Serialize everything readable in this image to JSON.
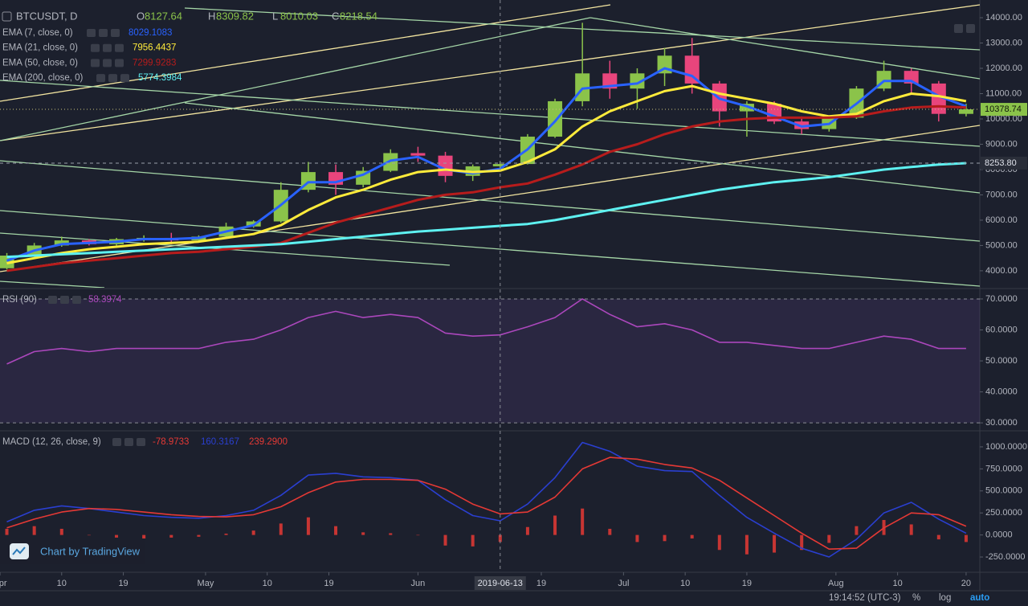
{
  "chart_data": [
    {
      "type": "candlestick",
      "title": "BTCUSDT, D",
      "ohlc_labels": [
        "O",
        "H",
        "L",
        "C"
      ],
      "crosshair": "2019-06-13",
      "x": [
        "2019-04-02",
        "2019-04-06",
        "2019-04-10",
        "2019-04-14",
        "2019-04-18",
        "2019-04-22",
        "2019-04-26",
        "2019-04-30",
        "2019-05-04",
        "2019-05-08",
        "2019-05-12",
        "2019-05-16",
        "2019-05-20",
        "2019-05-24",
        "2019-05-28",
        "2019-06-01",
        "2019-06-05",
        "2019-06-09",
        "2019-06-13",
        "2019-06-17",
        "2019-06-21",
        "2019-06-25",
        "2019-06-29",
        "2019-07-03",
        "2019-07-07",
        "2019-07-11",
        "2019-07-15",
        "2019-07-19",
        "2019-07-23",
        "2019-07-27",
        "2019-07-31",
        "2019-08-04",
        "2019-08-08",
        "2019-08-12",
        "2019-08-16",
        "2019-08-20"
      ],
      "open": [
        4100,
        4600,
        5000,
        5200,
        5050,
        5250,
        5300,
        5200,
        5350,
        5750,
        5950,
        7200,
        7900,
        7400,
        7950,
        8650,
        8550,
        7750,
        8127.64,
        8218.54,
        9300,
        10700,
        11800,
        11200,
        11800,
        12500,
        11400,
        10300,
        10600,
        9900,
        9600,
        10050,
        11200,
        11900,
        11400,
        10200
      ],
      "high": [
        4700,
        5100,
        5350,
        5250,
        5300,
        5400,
        5500,
        5400,
        5900,
        6000,
        7500,
        8300,
        8200,
        8100,
        8800,
        8900,
        8700,
        8200,
        8309.82,
        9400,
        10800,
        13800,
        12300,
        12000,
        12800,
        13200,
        11500,
        10700,
        10700,
        10100,
        10100,
        11300,
        12300,
        12000,
        11500,
        10600
      ],
      "low": [
        4050,
        4550,
        4950,
        5000,
        5000,
        5150,
        5050,
        5150,
        5300,
        5700,
        5900,
        7100,
        7000,
        7300,
        7900,
        8300,
        7500,
        7550,
        8010.03,
        8200,
        9250,
        10500,
        10800,
        10400,
        11300,
        11000,
        9700,
        9300,
        9800,
        9400,
        9500,
        10000,
        11100,
        11000,
        9900,
        10100
      ],
      "close": [
        4600,
        5000,
        5200,
        5050,
        5250,
        5300,
        5200,
        5350,
        5750,
        5950,
        7200,
        7900,
        7400,
        7950,
        8650,
        8550,
        7750,
        8127.64,
        8218.54,
        9300,
        10700,
        11800,
        11200,
        11800,
        12500,
        11400,
        10300,
        10600,
        9900,
        9600,
        10050,
        11200,
        11900,
        11400,
        10200,
        10378.74
      ],
      "up_color": "#8bc34a",
      "down_color": "#e8457c",
      "series": [
        {
          "name": "EMA (7, close, 0)",
          "color": "#2962ff",
          "values": [
            4400,
            4800,
            5050,
            5100,
            5150,
            5250,
            5250,
            5300,
            5550,
            5800,
            6600,
            7500,
            7500,
            7800,
            8350,
            8500,
            8000,
            7850,
            8029.1083,
            8800,
            9900,
            11200,
            11300,
            11400,
            12000,
            11700,
            10800,
            10500,
            10100,
            9700,
            9800,
            10600,
            11500,
            11500,
            10900,
            10500
          ]
        },
        {
          "name": "EMA (21, close, 0)",
          "color": "#ffeb3b",
          "values": [
            4300,
            4500,
            4700,
            4850,
            4950,
            5050,
            5100,
            5150,
            5300,
            5450,
            5800,
            6400,
            6900,
            7200,
            7600,
            7900,
            8000,
            7900,
            7956.4437,
            8300,
            8800,
            9700,
            10300,
            10700,
            11100,
            11300,
            11000,
            10800,
            10600,
            10300,
            10100,
            10200,
            10700,
            11000,
            10900,
            10700
          ]
        },
        {
          "name": "EMA (50, close, 0)",
          "color": "#b71c1c",
          "values": [
            4000,
            4150,
            4300,
            4400,
            4500,
            4600,
            4700,
            4750,
            4850,
            4950,
            5100,
            5500,
            5900,
            6200,
            6500,
            6800,
            7000,
            7100,
            7299.9283,
            7450,
            7800,
            8200,
            8700,
            9000,
            9400,
            9700,
            9900,
            10000,
            10050,
            10050,
            10050,
            10100,
            10300,
            10450,
            10500,
            10450
          ]
        },
        {
          "name": "EMA (200, close, 0)",
          "color": "#5ef1f1",
          "values": [
            4550,
            4600,
            4650,
            4700,
            4750,
            4800,
            4850,
            4900,
            4950,
            5000,
            5050,
            5150,
            5250,
            5350,
            5450,
            5550,
            5620,
            5700,
            5774.3984,
            5850,
            6000,
            6200,
            6400,
            6600,
            6800,
            7000,
            7200,
            7350,
            7500,
            7600,
            7700,
            7850,
            8000,
            8100,
            8200,
            8253.8
          ],
          "value_labels": [
            null,
            null,
            null,
            null,
            null,
            null,
            null,
            null,
            null,
            null,
            null,
            null,
            null,
            null,
            null,
            null,
            null,
            null,
            null,
            null,
            null,
            null,
            null,
            null,
            null,
            null,
            null,
            null,
            null,
            null,
            null,
            null,
            null,
            null,
            null,
            "8253.80"
          ]
        }
      ],
      "xlim": [
        "2019-04-01",
        "2019-08-22"
      ],
      "xticks": [
        {
          "value": "2019-04-01",
          "label": "Apr"
        },
        {
          "value": "2019-04-10",
          "label": "10"
        },
        {
          "value": "2019-04-19",
          "label": "19"
        },
        {
          "value": "2019-05-01",
          "label": "May"
        },
        {
          "value": "2019-05-10",
          "label": "10"
        },
        {
          "value": "2019-05-19",
          "label": "19"
        },
        {
          "value": "2019-06-01",
          "label": "Jun"
        },
        {
          "value": "2019-06-19",
          "label": "19"
        },
        {
          "value": "2019-07-01",
          "label": "Jul"
        },
        {
          "value": "2019-07-10",
          "label": "10"
        },
        {
          "value": "2019-07-19",
          "label": "19"
        },
        {
          "value": "2019-08-01",
          "label": "Aug"
        },
        {
          "value": "2019-08-10",
          "label": "10"
        },
        {
          "value": "2019-08-20",
          "label": "20"
        }
      ],
      "ylim": [
        3330,
        14700
      ],
      "yticks": [
        {
          "value": 4000,
          "label": "4000.00"
        },
        {
          "value": 5000,
          "label": "5000.00"
        },
        {
          "value": 6000,
          "label": "6000.00"
        },
        {
          "value": 7000,
          "label": "7000.00"
        },
        {
          "value": 8000,
          "label": "8000.00"
        },
        {
          "value": 9000,
          "label": "9000.00"
        },
        {
          "value": 10000,
          "label": "10000.00"
        },
        {
          "value": 11000,
          "label": "11000.00"
        },
        {
          "value": 12000,
          "label": "12000.00"
        },
        {
          "value": 13000,
          "label": "13000.00"
        },
        {
          "value": 14000,
          "label": "14000.00"
        }
      ]
    },
    {
      "type": "line",
      "title": "RSI (90)",
      "band": [
        30,
        70
      ],
      "band_color": "#7e57c2",
      "series": [
        {
          "name": "RSI",
          "color": "#ab47bc",
          "values": [
            49,
            53,
            54,
            53,
            54,
            54,
            54,
            54,
            56,
            57,
            60,
            64,
            66,
            64,
            65,
            64,
            59,
            58,
            58.3974,
            61,
            64,
            70,
            65,
            61,
            62,
            60,
            56,
            56,
            55,
            54,
            54,
            56,
            58,
            57,
            54,
            54
          ]
        }
      ],
      "ylim": [
        27.7,
        73.1
      ],
      "yticks": [
        {
          "value": 30,
          "label": "30.0000"
        },
        {
          "value": 40,
          "label": "40.0000"
        },
        {
          "value": 50,
          "label": "50.0000"
        },
        {
          "value": 60,
          "label": "60.0000"
        },
        {
          "value": 70,
          "label": "70.0000"
        }
      ]
    },
    {
      "type": "line",
      "title": "MACD (12, 26, close, 9)",
      "series": [
        {
          "name": "Histogram",
          "kind": "bar",
          "color": "#e53935",
          "values": [
            70,
            100,
            70,
            0,
            -30,
            -40,
            -30,
            -20,
            15,
            50,
            130,
            200,
            100,
            30,
            20,
            0,
            -120,
            -130,
            -78.9733,
            90,
            220,
            300,
            70,
            -80,
            -70,
            -40,
            -170,
            -220,
            -200,
            -170,
            -90,
            100,
            170,
            120,
            -50,
            -80
          ]
        },
        {
          "name": "MACD",
          "color": "#2a3fd0",
          "values": [
            150,
            280,
            330,
            300,
            260,
            220,
            200,
            190,
            220,
            280,
            450,
            680,
            700,
            660,
            650,
            620,
            400,
            220,
            160.3167,
            350,
            650,
            1050,
            950,
            780,
            730,
            720,
            450,
            200,
            20,
            -150,
            -250,
            -50,
            250,
            370,
            180,
            20
          ]
        },
        {
          "name": "Signal",
          "color": "#e53935",
          "values": [
            80,
            180,
            260,
            300,
            290,
            260,
            230,
            210,
            205,
            230,
            320,
            480,
            600,
            630,
            630,
            620,
            520,
            350,
            239.29,
            260,
            430,
            750,
            880,
            860,
            800,
            760,
            620,
            420,
            220,
            20,
            -160,
            -150,
            80,
            250,
            230,
            100
          ],
          "value_labels": [
            null,
            null,
            null,
            null,
            null,
            null,
            null,
            null,
            null,
            null,
            null,
            null,
            null,
            null,
            null,
            null,
            null,
            null,
            "239.2900",
            null,
            null,
            null,
            null,
            null,
            null,
            null,
            null,
            null,
            null,
            null,
            null,
            null,
            null,
            null,
            null,
            null
          ]
        }
      ],
      "ylim": [
        -423,
        1173
      ],
      "yticks": [
        {
          "value": -250,
          "label": "-250.0000"
        },
        {
          "value": 0,
          "label": "0.0000"
        },
        {
          "value": 250,
          "label": "250.0000"
        },
        {
          "value": 500,
          "label": "500.0000"
        },
        {
          "value": 750,
          "label": "750.0000"
        },
        {
          "value": 1000,
          "label": "1000.0000"
        }
      ]
    }
  ],
  "branding": "Chart by TradingView",
  "footer": {
    "time": "19:14:52 (UTC-3)",
    "buttons": [
      "%",
      "log",
      "auto"
    ]
  }
}
